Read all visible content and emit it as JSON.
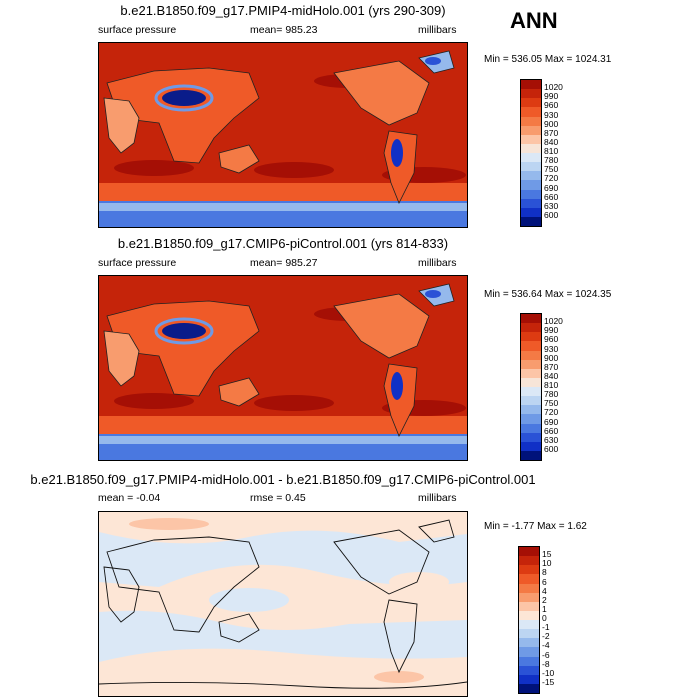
{
  "season": "ANN",
  "panels": [
    {
      "title": "b.e21.B1850.f09_g17.PMIP4-midHolo.001 (yrs 290-309)",
      "left_label": "surface pressure",
      "mid_label": "mean= 985.23",
      "right_label": "millibars",
      "minmax": "Min = 536.05 Max = 1024.31",
      "levels": [
        "1020",
        "990",
        "960",
        "930",
        "900",
        "870",
        "840",
        "810",
        "780",
        "750",
        "720",
        "690",
        "660",
        "630",
        "600"
      ],
      "colors": [
        "#a50f05",
        "#c5240a",
        "#dd3b12",
        "#ef5a28",
        "#f47a45",
        "#f89c6e",
        "#fcc5a7",
        "#f7e5d8",
        "#dbe8f6",
        "#bcd5f2",
        "#95b9ec",
        "#6f9ae6",
        "#4a78e0",
        "#2a52d6",
        "#1030c6",
        "#00127a"
      ]
    },
    {
      "title": "b.e21.B1850.f09_g17.CMIP6-piControl.001 (yrs 814-833)",
      "left_label": "surface pressure",
      "mid_label": "mean= 985.27",
      "right_label": "millibars",
      "minmax": "Min = 536.64 Max = 1024.35",
      "levels": [
        "1020",
        "990",
        "960",
        "930",
        "900",
        "870",
        "840",
        "810",
        "780",
        "750",
        "720",
        "690",
        "660",
        "630",
        "600"
      ],
      "colors": [
        "#a50f05",
        "#c5240a",
        "#dd3b12",
        "#ef5a28",
        "#f47a45",
        "#f89c6e",
        "#fcc5a7",
        "#f7e5d8",
        "#dbe8f6",
        "#bcd5f2",
        "#95b9ec",
        "#6f9ae6",
        "#4a78e0",
        "#2a52d6",
        "#1030c6",
        "#00127a"
      ]
    },
    {
      "title": "b.e21.B1850.f09_g17.PMIP4-midHolo.001 - b.e21.B1850.f09_g17.CMIP6-piControl.001",
      "left_label": "mean =  -0.04",
      "mid_label": "rmse =   0.45",
      "right_label": "millibars",
      "minmax": "Min =  -1.77 Max =   1.62",
      "levels": [
        "15",
        "10",
        "8",
        "6",
        "4",
        "2",
        "1",
        "0",
        "-1",
        "-2",
        "-4",
        "-6",
        "-8",
        "-10",
        "-15"
      ],
      "colors": [
        "#a50f05",
        "#c5240a",
        "#dd3b12",
        "#ef5a28",
        "#f47a45",
        "#f89c6e",
        "#fcc5a7",
        "#fde6d6",
        "#dbe8f6",
        "#bcd5f2",
        "#95b9ec",
        "#6f9ae6",
        "#4a78e0",
        "#2a52d6",
        "#1030c6",
        "#00127a"
      ]
    }
  ]
}
